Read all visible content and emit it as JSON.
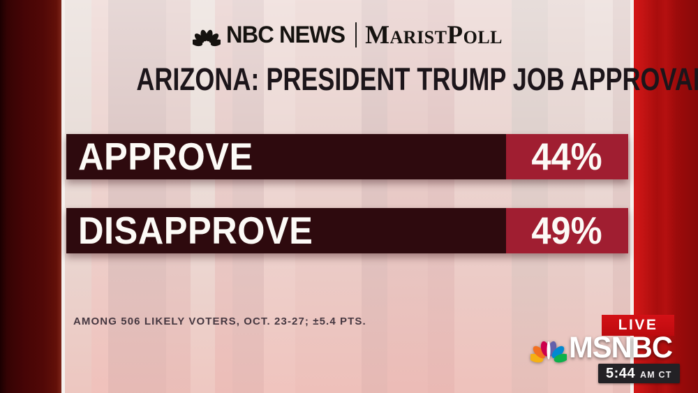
{
  "brand_header": {
    "network": "NBC NEWS",
    "poll_brand": "MaristPoll"
  },
  "title": "ARIZONA: PRESIDENT TRUMP JOB APPROVAL",
  "chart_data": {
    "type": "bar",
    "categories": [
      "APPROVE",
      "DISAPPROVE"
    ],
    "values": [
      44,
      49
    ],
    "value_labels": [
      "44%",
      "49%"
    ],
    "unit": "%",
    "title": "ARIZONA: PRESIDENT TRUMP JOB APPROVAL",
    "source_note": "AMONG 506 LIKELY VOTERS, OCT. 23-27; ±5.4 PTS.",
    "legend": "none",
    "layout_hint": "horizontal dark label bars with fixed-width red value chips, not length-scaled"
  },
  "bars": [
    {
      "label": "APPROVE",
      "value": "44%"
    },
    {
      "label": "DISAPPROVE",
      "value": "49%"
    }
  ],
  "footnote": "AMONG 506 LIKELY VOTERS, OCT. 23-27; ±5.4 PTS.",
  "broadcast": {
    "live_label": "LIVE",
    "channel": "MSNBC",
    "time": "5:44",
    "timezone": "AM CT"
  },
  "colors": {
    "bar_dark": "#2e0a0e",
    "value_chip_red": "#a01e31",
    "frame_left_maroon": "#4a0506",
    "frame_right_red": "#ab0d0d",
    "live_badge_red": "#c90d10",
    "time_badge_dark": "#232125",
    "peacock_feathers": [
      "#f5b014",
      "#f37021",
      "#cc004c",
      "#6460aa",
      "#0089d0",
      "#0db14b"
    ]
  }
}
